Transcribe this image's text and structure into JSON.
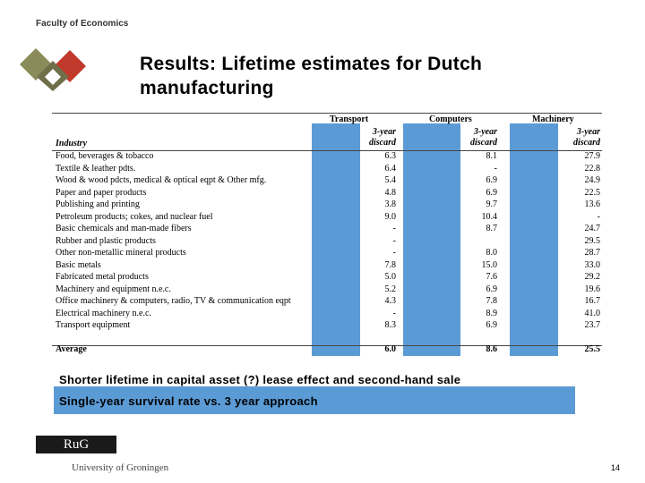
{
  "header": {
    "faculty": "Faculty of Economics"
  },
  "slide": {
    "title_line1": "Results: Lifetime estimates for Dutch",
    "title_line2": "manufacturing"
  },
  "table": {
    "industry_header": "Industry",
    "groups": [
      "Transport",
      "Computers",
      "Machinery"
    ],
    "subheader_line1": "3-year",
    "subheader_line2": "discard",
    "rows": [
      {
        "name": "Food, beverages & tobacco",
        "values": [
          "6.3",
          "8.1",
          "27.9"
        ]
      },
      {
        "name": "Textile & leather pdts.",
        "values": [
          "6.4",
          "-",
          "22.8"
        ]
      },
      {
        "name": "Wood & wood pdcts,  medical & optical eqpt & Other mfg.",
        "values": [
          "5.4",
          "6.9",
          "24.9"
        ]
      },
      {
        "name": "Paper and paper products",
        "values": [
          "4.8",
          "6.9",
          "22.5"
        ]
      },
      {
        "name": "Publishing and printing",
        "values": [
          "3.8",
          "9.7",
          "13.6"
        ]
      },
      {
        "name": "Petroleum products; cokes, and nuclear fuel",
        "values": [
          "9.0",
          "10.4",
          "-"
        ]
      },
      {
        "name": "Basic chemicals and man-made fibers",
        "values": [
          "-",
          "8.7",
          "24.7"
        ]
      },
      {
        "name": "Rubber and plastic products",
        "values": [
          "-",
          "",
          "29.5"
        ]
      },
      {
        "name": "Other non-metallic mineral products",
        "values": [
          "-",
          "8.0",
          "28.7"
        ]
      },
      {
        "name": "Basic metals",
        "values": [
          "7.8",
          "15.0",
          "33.0"
        ]
      },
      {
        "name": "Fabricated metal products",
        "values": [
          "5.0",
          "7.6",
          "29.2"
        ]
      },
      {
        "name": "Machinery and equipment n.e.c.",
        "values": [
          "5.2",
          "6.9",
          "19.6"
        ]
      },
      {
        "name": "Office machinery & computers, radio, TV & communication eqpt",
        "values": [
          "4.3",
          "7.8",
          "16.7"
        ]
      },
      {
        "name": "Electrical machinery n.e.c.",
        "values": [
          "-",
          "8.9",
          "41.0"
        ]
      },
      {
        "name": "Transport equipment",
        "values": [
          "8.3",
          "6.9",
          "23.7"
        ]
      }
    ],
    "average": {
      "name": "Average",
      "values": [
        "6.0",
        "8.6",
        "25.5"
      ]
    }
  },
  "notes": {
    "line1": "Shorter lifetime in capital asset (?) lease effect and second-hand sale",
    "line2": "Single-year survival rate vs. 3 year approach"
  },
  "footer": {
    "rug": "RuG",
    "university": "University of Groningen",
    "page": "14"
  },
  "colors": {
    "band": "#5b9bd5",
    "logo_red": "#c0392b",
    "logo_olive": "#8a8a5a"
  }
}
